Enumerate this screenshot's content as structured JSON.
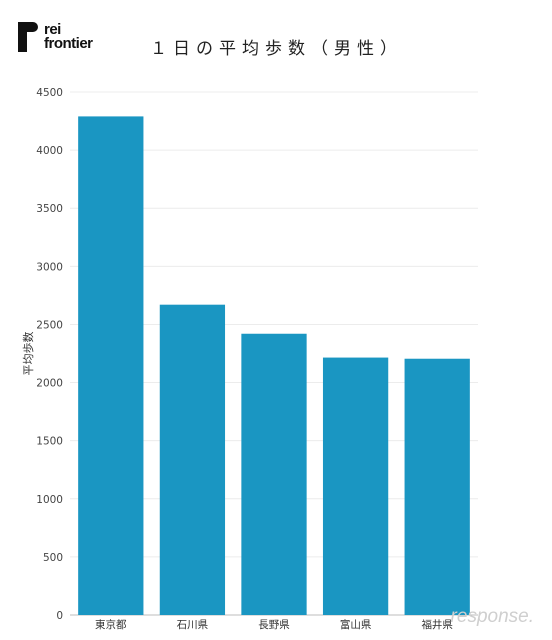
{
  "header": {
    "logo_line1": "rei",
    "logo_line2": "frontier",
    "title": "１日の平均歩数（男性）"
  },
  "watermark": "response.",
  "chart_data": {
    "type": "bar",
    "title": "１日の平均歩数（男性）",
    "xlabel": "",
    "ylabel": "平均歩数",
    "categories": [
      "東京都",
      "石川県",
      "長野県",
      "富山県",
      "福井県"
    ],
    "values": [
      4290,
      2670,
      2420,
      2215,
      2205
    ],
    "ylim": [
      0,
      4500
    ],
    "yticks": [
      0,
      500,
      1000,
      1500,
      2000,
      2500,
      3000,
      3500,
      4000,
      4500
    ],
    "grid": true,
    "bar_color": "#1a96c2"
  }
}
